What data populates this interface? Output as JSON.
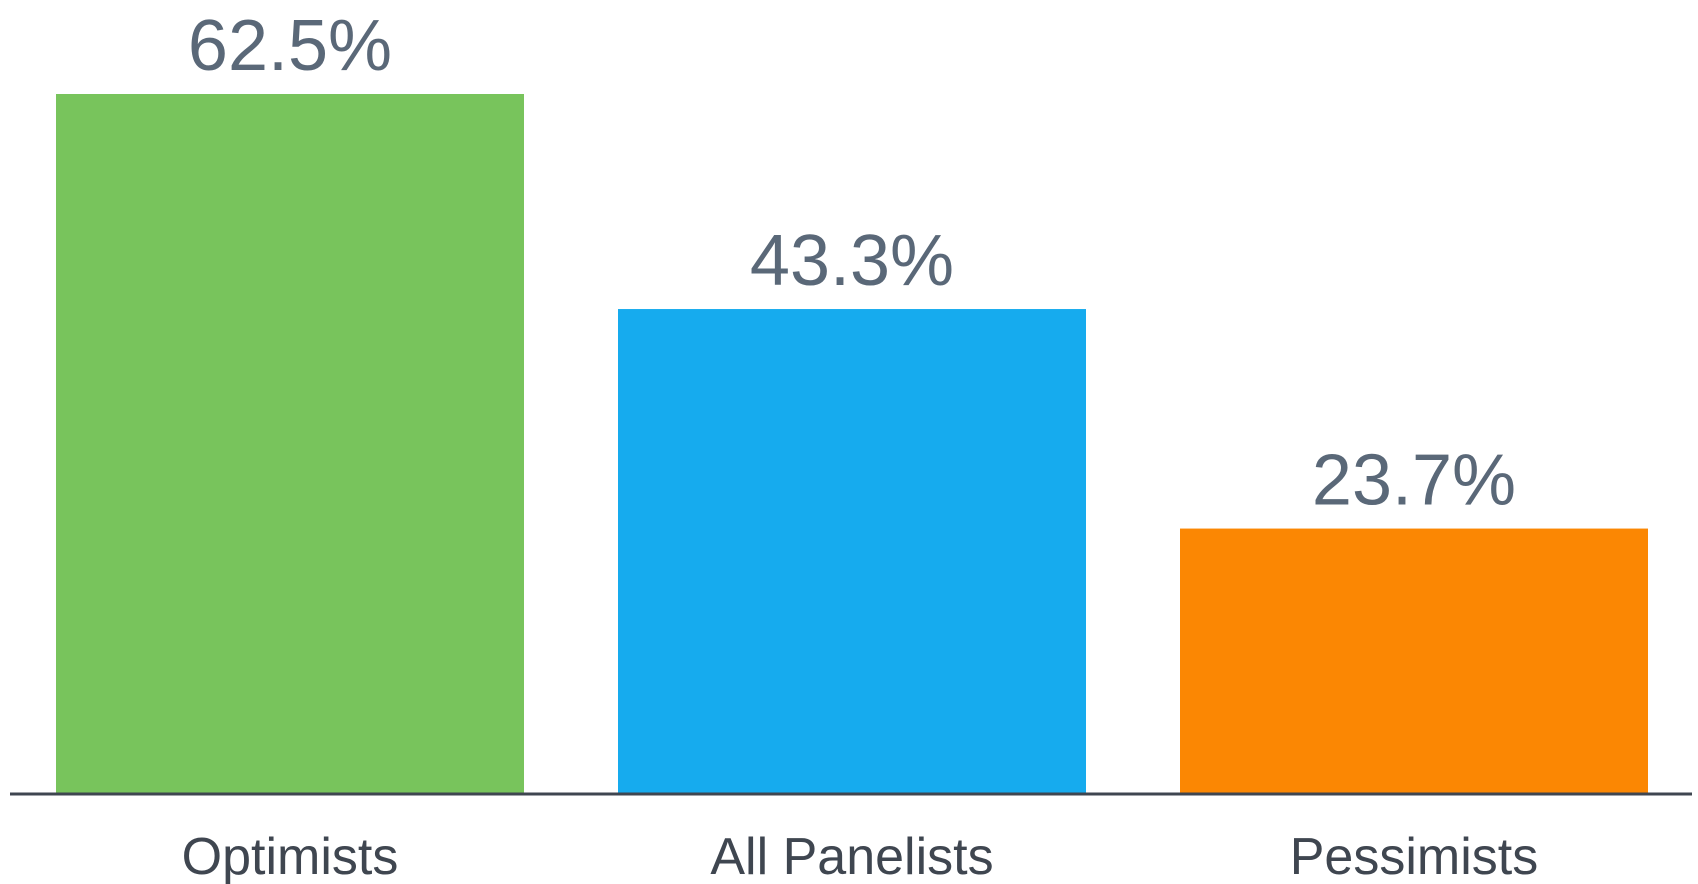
{
  "chart_data": {
    "type": "bar",
    "categories": [
      "Optimists",
      "All Panelists",
      "Pessimists"
    ],
    "values": [
      62.5,
      43.3,
      23.7
    ],
    "value_labels": [
      "62.5%",
      "43.3%",
      "23.7%"
    ],
    "colors": [
      "#78c45c",
      "#16abee",
      "#fb8703"
    ],
    "ylim": [
      0,
      62.5
    ],
    "grid": false,
    "title": "",
    "xlabel": "",
    "ylabel": ""
  },
  "style": {
    "value_label_color": "#5a6878",
    "category_label_color": "#3f4650",
    "baseline_color": "#3f4650"
  }
}
